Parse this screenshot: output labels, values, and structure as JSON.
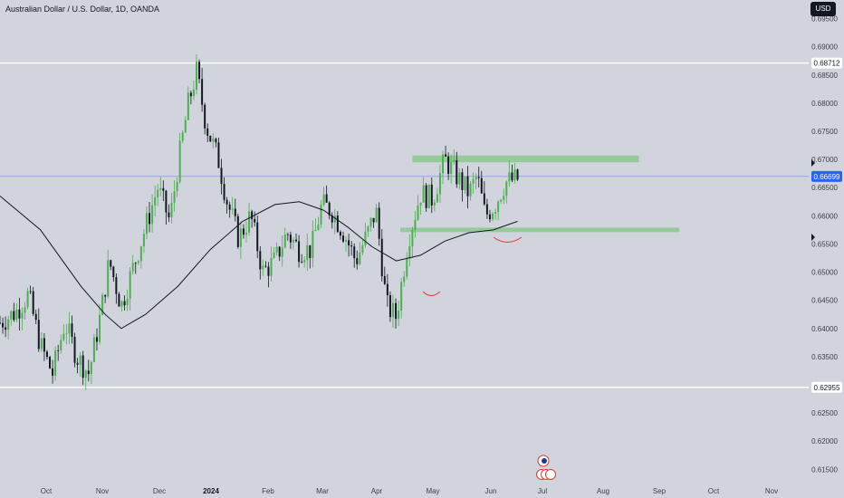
{
  "header": {
    "symbol_title": "Australian Dollar / U.S. Dollar, 1D, OANDA",
    "currency_button": "USD"
  },
  "colors": {
    "background": "#d1d4dc",
    "candle_up": "#4caf50",
    "candle_down": "#131722",
    "ma_line": "#131722",
    "zone_fill": "#81c784",
    "price_line": "#2962ff",
    "curve_marks": "#e53935",
    "hline": "#ffffff"
  },
  "chart_data": {
    "type": "candlestick",
    "title": "Australian Dollar / U.S. Dollar, 1D, OANDA",
    "ylim": [
      0.6128,
      0.6983
    ],
    "y_ticks": [
      "0.69500",
      "0.69000",
      "0.68500",
      "0.68000",
      "0.67500",
      "0.67000",
      "0.66500",
      "0.66000",
      "0.65500",
      "0.65000",
      "0.64500",
      "0.64000",
      "0.63500",
      "0.63000",
      "0.62500",
      "0.62000",
      "0.61500"
    ],
    "x_ticks": [
      "Oct",
      "Nov",
      "Dec",
      "2024",
      "Feb",
      "Mar",
      "Apr",
      "May",
      "Jun",
      "Jul",
      "Aug",
      "Sep",
      "Oct",
      "Nov"
    ],
    "current_price": "0.66699",
    "current_price_value": 0.66699,
    "horizontal_lines": [
      {
        "label": "0.68712",
        "value": 0.68712
      },
      {
        "label": "0.62955",
        "value": 0.62955
      }
    ],
    "zones": [
      {
        "name": "resistance",
        "low": 0.6695,
        "high": 0.6707,
        "x_start": 0.51,
        "x_end": 0.79
      },
      {
        "name": "support",
        "low": 0.6571,
        "high": 0.6579,
        "x_start": 0.495,
        "x_end": 0.84
      }
    ],
    "price_path": [
      {
        "x": 0.0,
        "y": 0.641
      },
      {
        "x": 0.02,
        "y": 0.643
      },
      {
        "x": 0.035,
        "y": 0.646
      },
      {
        "x": 0.05,
        "y": 0.637
      },
      {
        "x": 0.065,
        "y": 0.632
      },
      {
        "x": 0.08,
        "y": 0.641
      },
      {
        "x": 0.095,
        "y": 0.635
      },
      {
        "x": 0.11,
        "y": 0.632
      },
      {
        "x": 0.125,
        "y": 0.643
      },
      {
        "x": 0.135,
        "y": 0.652
      },
      {
        "x": 0.15,
        "y": 0.644
      },
      {
        "x": 0.165,
        "y": 0.651
      },
      {
        "x": 0.18,
        "y": 0.658
      },
      {
        "x": 0.195,
        "y": 0.665
      },
      {
        "x": 0.21,
        "y": 0.659
      },
      {
        "x": 0.22,
        "y": 0.669
      },
      {
        "x": 0.233,
        "y": 0.68
      },
      {
        "x": 0.243,
        "y": 0.6855
      },
      {
        "x": 0.255,
        "y": 0.676
      },
      {
        "x": 0.27,
        "y": 0.67
      },
      {
        "x": 0.28,
        "y": 0.663
      },
      {
        "x": 0.295,
        "y": 0.656
      },
      {
        "x": 0.31,
        "y": 0.66
      },
      {
        "x": 0.325,
        "y": 0.65
      },
      {
        "x": 0.34,
        "y": 0.652
      },
      {
        "x": 0.355,
        "y": 0.657
      },
      {
        "x": 0.37,
        "y": 0.654
      },
      {
        "x": 0.385,
        "y": 0.654
      },
      {
        "x": 0.398,
        "y": 0.662
      },
      {
        "x": 0.41,
        "y": 0.661
      },
      {
        "x": 0.425,
        "y": 0.657
      },
      {
        "x": 0.44,
        "y": 0.652
      },
      {
        "x": 0.455,
        "y": 0.657
      },
      {
        "x": 0.465,
        "y": 0.661
      },
      {
        "x": 0.478,
        "y": 0.644
      },
      {
        "x": 0.49,
        "y": 0.642
      },
      {
        "x": 0.505,
        "y": 0.656
      },
      {
        "x": 0.52,
        "y": 0.664
      },
      {
        "x": 0.535,
        "y": 0.663
      },
      {
        "x": 0.55,
        "y": 0.67
      },
      {
        "x": 0.565,
        "y": 0.667
      },
      {
        "x": 0.58,
        "y": 0.664
      },
      {
        "x": 0.59,
        "y": 0.667
      },
      {
        "x": 0.6,
        "y": 0.66
      },
      {
        "x": 0.612,
        "y": 0.662
      },
      {
        "x": 0.625,
        "y": 0.666
      },
      {
        "x": 0.64,
        "y": 0.6665
      }
    ],
    "ma_path": [
      {
        "x": 0.0,
        "y": 0.6635
      },
      {
        "x": 0.05,
        "y": 0.6575
      },
      {
        "x": 0.1,
        "y": 0.6475
      },
      {
        "x": 0.13,
        "y": 0.6425
      },
      {
        "x": 0.15,
        "y": 0.64
      },
      {
        "x": 0.18,
        "y": 0.6425
      },
      {
        "x": 0.22,
        "y": 0.6475
      },
      {
        "x": 0.26,
        "y": 0.654
      },
      {
        "x": 0.3,
        "y": 0.659
      },
      {
        "x": 0.34,
        "y": 0.662
      },
      {
        "x": 0.37,
        "y": 0.6625
      },
      {
        "x": 0.4,
        "y": 0.661
      },
      {
        "x": 0.43,
        "y": 0.658
      },
      {
        "x": 0.46,
        "y": 0.6545
      },
      {
        "x": 0.49,
        "y": 0.652
      },
      {
        "x": 0.52,
        "y": 0.653
      },
      {
        "x": 0.55,
        "y": 0.6555
      },
      {
        "x": 0.58,
        "y": 0.657
      },
      {
        "x": 0.61,
        "y": 0.6575
      },
      {
        "x": 0.64,
        "y": 0.659
      }
    ]
  }
}
